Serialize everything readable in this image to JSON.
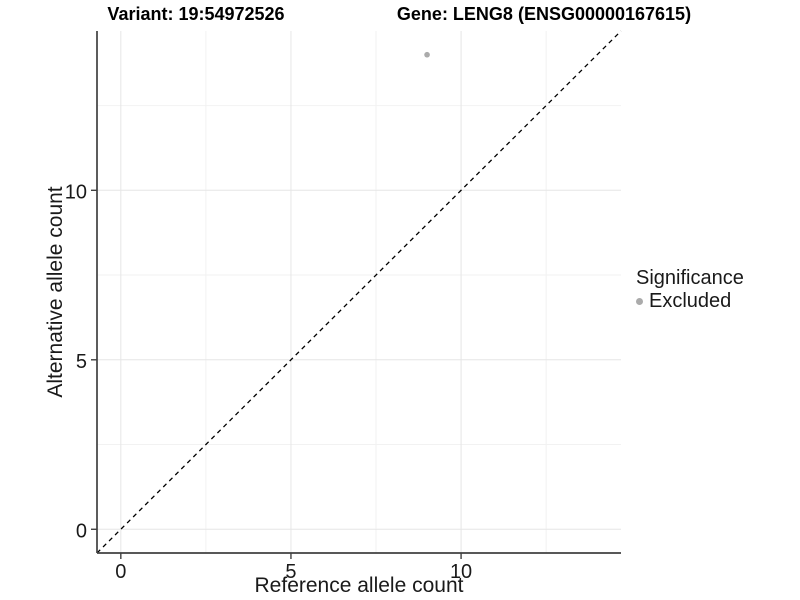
{
  "titles": {
    "variant": "Variant: 19:54972526",
    "gene": "Gene: LENG8 (ENSG00000167615)"
  },
  "chart_data": {
    "type": "scatter",
    "title": "Variant: 19:54972526   Gene: LENG8 (ENSG00000167615)",
    "xlabel": "Reference allele count",
    "ylabel": "Alternative allele count",
    "xlim": [
      -0.7,
      14.7
    ],
    "ylim": [
      -0.7,
      14.7
    ],
    "x_major_ticks": [
      0,
      5,
      10
    ],
    "y_major_ticks": [
      0,
      5,
      10
    ],
    "x_minor_ticks": [
      2.5,
      7.5,
      12.5
    ],
    "y_minor_ticks": [
      2.5,
      7.5,
      12.5
    ],
    "grid": "major+minor",
    "points": [
      {
        "x": 9,
        "y": 14,
        "significance": "Excluded"
      }
    ],
    "identity_line": {
      "slope": 1,
      "intercept": 0,
      "style": "dashed",
      "color": "#000000"
    },
    "legend": {
      "title": "Significance",
      "position": "right",
      "items": [
        {
          "label": "Excluded",
          "color": "#ababab"
        }
      ]
    },
    "colors": {
      "point": "#ababab",
      "axis_line": "#404040",
      "axis_text": "#1a1a1a",
      "grid_major": "#e6e6e6",
      "grid_minor": "#f2f2f2",
      "background": "#ffffff"
    }
  }
}
